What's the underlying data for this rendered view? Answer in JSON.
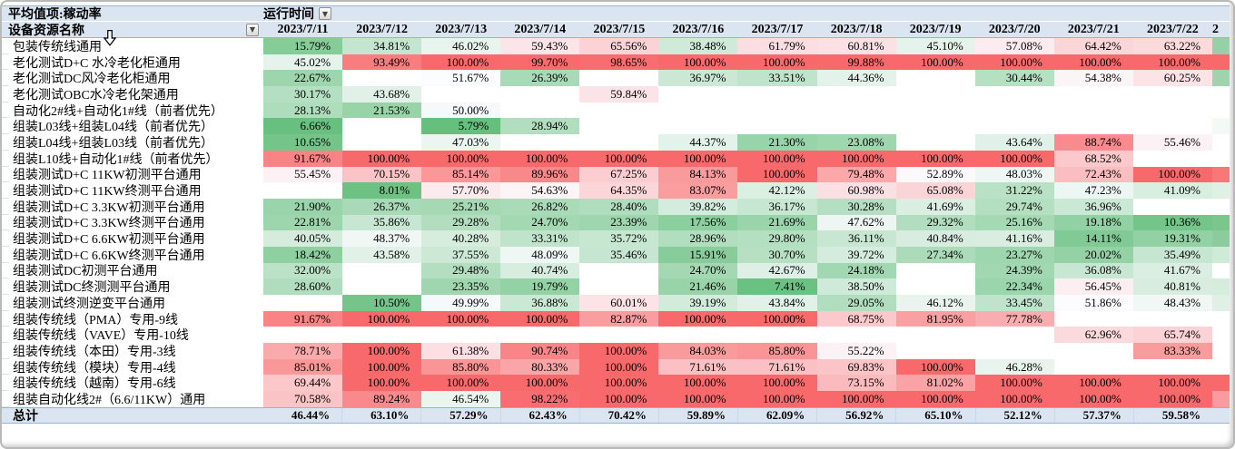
{
  "window": {
    "type": "excel-pivot-table"
  },
  "header": {
    "measure_label": "平均值项:稼动率",
    "column_field_label": "运行时间",
    "row_field_label": "设备资源名称",
    "dropdown_glyph": "▼",
    "dates": [
      "2023/7/11",
      "2023/7/12",
      "2023/7/13",
      "2023/7/14",
      "2023/7/15",
      "2023/7/16",
      "2023/7/17",
      "2023/7/18",
      "2023/7/19",
      "2023/7/20",
      "2023/7/21",
      "2023/7/22"
    ],
    "next_column_partial": "2"
  },
  "colors": {
    "header_bg": "#DBE5F1",
    "header_border": "#95B3D7",
    "total_bg": "#DBE5F1",
    "heat_min_color": "#63BE7B",
    "heat_mid_color": "#FCFCFF",
    "heat_max_color": "#F8696B",
    "heat_min_value": 5,
    "heat_mid_value": 52,
    "heat_max_value": 100
  },
  "pivot": {
    "rows": [
      {
        "label": "包装传统线通用",
        "values": [
          15.79,
          34.81,
          46.02,
          59.43,
          65.56,
          38.48,
          61.79,
          60.81,
          45.1,
          57.08,
          64.42,
          63.22
        ],
        "next_partial_color": "#97CFA6"
      },
      {
        "label": "老化测试D+C 水冷老化柜通用",
        "values": [
          45.02,
          93.49,
          100.0,
          99.7,
          98.65,
          100.0,
          100.0,
          99.88,
          100.0,
          100.0,
          100.0,
          100.0
        ],
        "next_partial_color": "#F8696B"
      },
      {
        "label": "老化测试DC风冷老化柜通用",
        "values": [
          22.67,
          null,
          51.67,
          26.39,
          null,
          36.97,
          33.51,
          44.36,
          null,
          30.44,
          54.38,
          60.25
        ],
        "next_partial_color": "#9FD3AD"
      },
      {
        "label": "老化测试OBC水冷老化架通用",
        "values": [
          30.17,
          43.68,
          null,
          null,
          59.84,
          null,
          null,
          null,
          null,
          null,
          null,
          null
        ],
        "next_partial_color": "#FFFFFF"
      },
      {
        "label": "自动化2#线+自动化1#线（前者优先）",
        "values": [
          28.13,
          21.53,
          50.0,
          null,
          null,
          null,
          null,
          null,
          null,
          null,
          null,
          null
        ],
        "next_partial_color": "#FFFFFF"
      },
      {
        "label": "组装L03线+组装L04线（前者优先）",
        "values": [
          6.66,
          null,
          5.79,
          28.94,
          null,
          null,
          null,
          null,
          null,
          null,
          null,
          null
        ],
        "next_partial_color": "#F3FAF6"
      },
      {
        "label": "组装L04线+组装L03线（前者优先）",
        "values": [
          10.65,
          null,
          47.03,
          null,
          null,
          44.37,
          21.3,
          23.08,
          null,
          43.64,
          88.74,
          55.46
        ],
        "next_partial_color": "#FFFFFF"
      },
      {
        "label": "组装L10线+自动化1#线（前者优先）",
        "values": [
          91.67,
          100.0,
          100.0,
          100.0,
          100.0,
          100.0,
          100.0,
          100.0,
          100.0,
          100.0,
          68.52,
          null
        ],
        "next_partial_color": "#FFFFFF"
      },
      {
        "label": "组装测试D+C 11KW初测平台通用",
        "values": [
          55.45,
          70.15,
          85.14,
          89.96,
          67.25,
          84.13,
          100.0,
          79.48,
          52.89,
          48.03,
          72.43,
          100.0
        ],
        "next_partial_color": "#F87779"
      },
      {
        "label": "组装测试D+C 11KW终测平台通用",
        "values": [
          null,
          8.01,
          57.7,
          54.63,
          64.35,
          83.07,
          42.12,
          60.98,
          65.08,
          31.22,
          47.23,
          41.09
        ],
        "next_partial_color": "#DFF0E5"
      },
      {
        "label": "组装测试D+C 3.3KW初测平台通用",
        "values": [
          21.9,
          26.37,
          25.21,
          26.82,
          28.4,
          39.82,
          36.17,
          30.28,
          41.69,
          29.74,
          36.96,
          null
        ],
        "next_partial_color": "#FFFFFF"
      },
      {
        "label": "组装测试D+C 3.3KW终测平台通用",
        "values": [
          22.81,
          35.86,
          29.28,
          24.7,
          23.39,
          17.56,
          21.69,
          47.62,
          29.32,
          25.16,
          19.18,
          10.36
        ],
        "next_partial_color": "#7AC68C"
      },
      {
        "label": "组装测试D+C 6.6KW初测平台通用",
        "values": [
          40.05,
          48.37,
          40.28,
          33.31,
          35.72,
          28.96,
          29.8,
          36.11,
          40.84,
          41.16,
          14.11,
          19.31
        ],
        "next_partial_color": "#8CCB9B"
      },
      {
        "label": "组装测试D+C 6.6KW终测平台通用",
        "values": [
          18.42,
          43.58,
          37.55,
          48.09,
          35.46,
          15.91,
          30.7,
          39.72,
          27.34,
          23.27,
          20.02,
          35.49
        ],
        "next_partial_color": "#CFEBD8"
      },
      {
        "label": "组装测试DC初测平台通用",
        "values": [
          32.0,
          null,
          29.48,
          40.74,
          null,
          24.7,
          42.67,
          24.18,
          null,
          24.39,
          36.08,
          41.67
        ],
        "next_partial_color": "#FFFFFF"
      },
      {
        "label": "组装测试DC终测测平台通用",
        "values": [
          28.6,
          null,
          23.35,
          19.79,
          null,
          21.46,
          7.41,
          38.5,
          null,
          22.34,
          56.45,
          40.81
        ],
        "next_partial_color": "#D5EDDD"
      },
      {
        "label": "组装测试终测逆变平台通用",
        "values": [
          null,
          10.5,
          49.99,
          36.88,
          60.01,
          39.19,
          43.84,
          29.05,
          46.12,
          33.45,
          51.86,
          48.43
        ],
        "next_partial_color": "#DFF1E6"
      },
      {
        "label": "组装传统线（PMA）专用-9线",
        "values": [
          91.67,
          100.0,
          100.0,
          100.0,
          82.87,
          100.0,
          100.0,
          68.75,
          81.95,
          77.78,
          null,
          null
        ],
        "next_partial_color": "#FFFFFF"
      },
      {
        "label": "组装传统线（VAVE）专用-10线",
        "values": [
          null,
          null,
          null,
          null,
          null,
          null,
          null,
          null,
          null,
          null,
          62.96,
          65.74
        ],
        "next_partial_color": "#FFFFFF"
      },
      {
        "label": "组装传统线（本田）专用-3线",
        "values": [
          78.71,
          100.0,
          61.38,
          90.74,
          100.0,
          84.03,
          85.8,
          55.22,
          null,
          null,
          null,
          83.33
        ],
        "next_partial_color": "#FFFFFF"
      },
      {
        "label": "组装传统线（模块）专用-4线",
        "values": [
          85.01,
          100.0,
          85.8,
          80.33,
          100.0,
          71.61,
          71.61,
          69.83,
          100.0,
          46.28,
          null,
          null
        ],
        "next_partial_color": "#FFFFFF"
      },
      {
        "label": "组装传统线（越南）专用-6线",
        "values": [
          69.44,
          100.0,
          100.0,
          100.0,
          100.0,
          100.0,
          100.0,
          73.15,
          81.02,
          100.0,
          100.0,
          100.0
        ],
        "next_partial_color": "#F8696B"
      },
      {
        "label": "组装自动化线2#（6.6/11KW）通用",
        "values": [
          70.58,
          89.24,
          46.54,
          98.22,
          100.0,
          100.0,
          100.0,
          100.0,
          100.0,
          100.0,
          100.0,
          100.0
        ],
        "next_partial_color": "#FA9B9D"
      }
    ],
    "total": {
      "label": "总计",
      "values": [
        46.44,
        63.1,
        57.29,
        62.43,
        70.42,
        59.89,
        62.09,
        56.92,
        65.1,
        52.12,
        57.37,
        59.58
      ],
      "next_partial_color": "#DBE5F1"
    }
  },
  "cursor": {
    "name": "down-arrow-cursor"
  }
}
